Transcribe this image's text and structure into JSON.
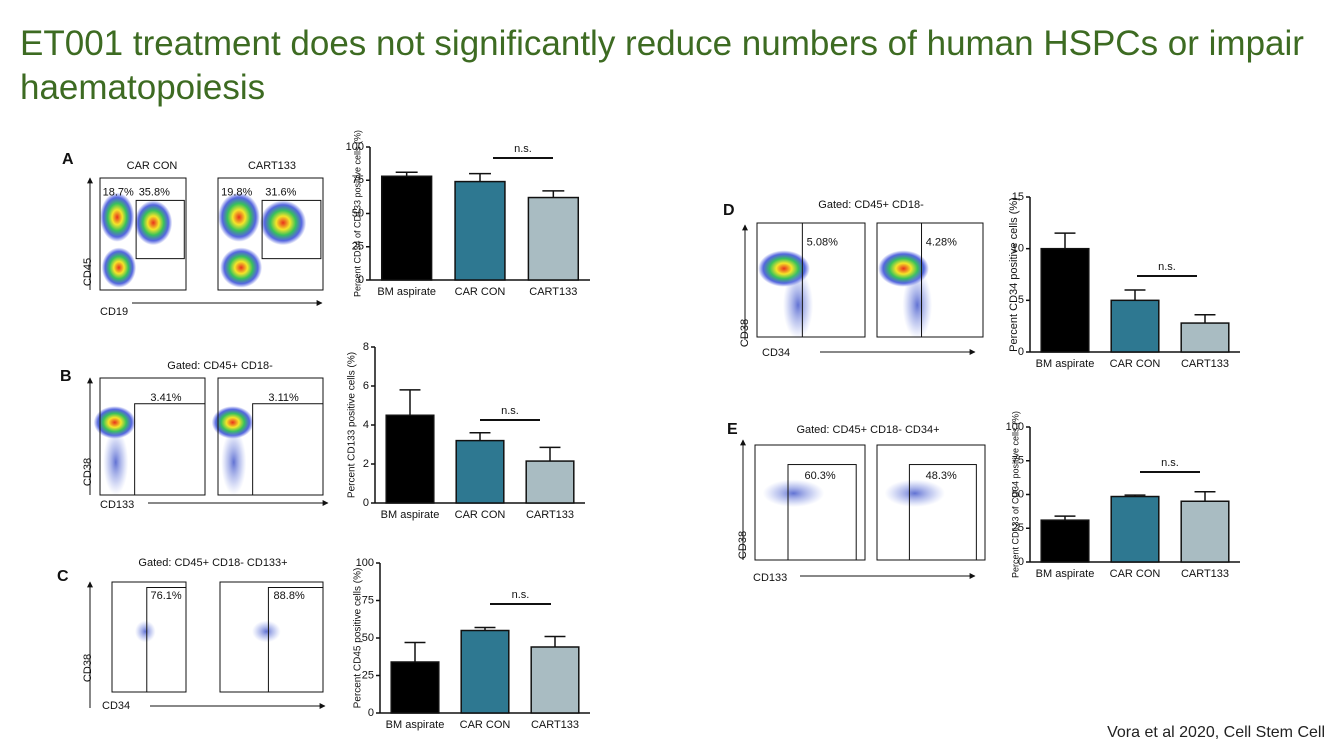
{
  "title": "ET001 treatment does not significantly reduce numbers of human HSPCs or impair haematopoiesis",
  "citation": "Vora et al 2020, Cell Stem Cell",
  "panels": [
    {
      "letter": "A",
      "headers": [
        "CAR CON",
        "CART133"
      ],
      "gates": [
        [
          "18.7%",
          "35.8%"
        ],
        [
          "19.8%",
          "31.6%"
        ]
      ],
      "y_label": "CD45",
      "x_label": "CD19"
    },
    {
      "letter": "B",
      "gating": "Gated: CD45+ CD18-",
      "gates": [
        [
          "3.41%"
        ],
        [
          "3.11%"
        ]
      ],
      "y_label": "CD38",
      "x_label": "CD133"
    },
    {
      "letter": "C",
      "gating": "Gated: CD45+ CD18- CD133+",
      "gates": [
        [
          "76.1%"
        ],
        [
          "88.8%"
        ]
      ],
      "y_label": "CD38",
      "x_label": "CD34"
    },
    {
      "letter": "D",
      "gating": "Gated: CD45+ CD18-",
      "gates": [
        [
          "5.08%"
        ],
        [
          "4.28%"
        ]
      ],
      "y_label": "CD38",
      "x_label": "CD34"
    },
    {
      "letter": "E",
      "gating": "Gated: CD45+ CD18- CD34+",
      "gates": [
        [
          "60.3%"
        ],
        [
          "48.3%"
        ]
      ],
      "y_label": "CD38",
      "x_label": "CD133"
    }
  ],
  "chart_data": [
    {
      "type": "bar",
      "y_label": "Percent CD34 of CD133 positive cells (%)",
      "categories": [
        "BM aspirate",
        "CAR CON",
        "CART133"
      ],
      "values": [
        78,
        74,
        62
      ],
      "errors": [
        3,
        6,
        5
      ],
      "colors": [
        "#000000",
        "#2e7891",
        "#a9bcc2"
      ],
      "ylim": [
        0,
        100
      ],
      "yticks": [
        0,
        25,
        50,
        75,
        100
      ],
      "annotation": "n.s."
    },
    {
      "type": "bar",
      "y_label": "Percent CD133 positive cells (%)",
      "categories": [
        "BM aspirate",
        "CAR CON",
        "CART133"
      ],
      "values": [
        4.5,
        3.2,
        2.15
      ],
      "errors": [
        1.3,
        0.4,
        0.7
      ],
      "colors": [
        "#000000",
        "#2e7891",
        "#a9bcc2"
      ],
      "ylim": [
        0,
        8
      ],
      "yticks": [
        0,
        2,
        4,
        6,
        8
      ],
      "annotation": "n.s."
    },
    {
      "type": "bar",
      "y_label": "Percent CD45 positive cells (%)",
      "categories": [
        "BM aspirate",
        "CAR CON",
        "CART133"
      ],
      "values": [
        34,
        55,
        44
      ],
      "errors": [
        13,
        2,
        7
      ],
      "colors": [
        "#000000",
        "#2e7891",
        "#a9bcc2"
      ],
      "ylim": [
        0,
        100
      ],
      "yticks": [
        0,
        25,
        50,
        75,
        100
      ],
      "annotation": "n.s."
    },
    {
      "type": "bar",
      "y_label": "Percent CD34 positive cells (%)",
      "categories": [
        "BM aspirate",
        "CAR CON",
        "CART133"
      ],
      "values": [
        10,
        5,
        2.8
      ],
      "errors": [
        1.5,
        1,
        0.8
      ],
      "colors": [
        "#000000",
        "#2e7891",
        "#a9bcc2"
      ],
      "ylim": [
        0,
        15
      ],
      "yticks": [
        0,
        5,
        10,
        15
      ],
      "annotation": "n.s."
    },
    {
      "type": "bar",
      "y_label": "Percent CD133 of CD34 positive cells (%)",
      "categories": [
        "BM aspirate",
        "CAR CON",
        "CART133"
      ],
      "values": [
        31,
        48.5,
        45
      ],
      "errors": [
        3,
        1,
        7
      ],
      "colors": [
        "#000000",
        "#2e7891",
        "#a9bcc2"
      ],
      "ylim": [
        0,
        100
      ],
      "yticks": [
        0,
        25,
        50,
        75,
        100
      ],
      "annotation": "n.s."
    }
  ]
}
